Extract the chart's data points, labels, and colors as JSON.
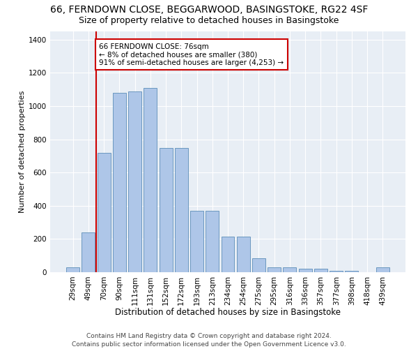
{
  "title1": "66, FERNDOWN CLOSE, BEGGARWOOD, BASINGSTOKE, RG22 4SF",
  "title2": "Size of property relative to detached houses in Basingstoke",
  "xlabel": "Distribution of detached houses by size in Basingstoke",
  "ylabel": "Number of detached properties",
  "categories": [
    "29sqm",
    "49sqm",
    "70sqm",
    "90sqm",
    "111sqm",
    "131sqm",
    "152sqm",
    "172sqm",
    "193sqm",
    "213sqm",
    "234sqm",
    "254sqm",
    "275sqm",
    "295sqm",
    "316sqm",
    "336sqm",
    "357sqm",
    "377sqm",
    "398sqm",
    "418sqm",
    "439sqm"
  ],
  "bar_heights": [
    30,
    240,
    720,
    1080,
    1090,
    1110,
    750,
    750,
    370,
    370,
    215,
    215,
    85,
    30,
    30,
    20,
    20,
    10,
    10,
    0,
    30
  ],
  "bar_color": "#aec6e8",
  "bar_edge_color": "#5b8db8",
  "vline_color": "#cc0000",
  "annotation_text": "66 FERNDOWN CLOSE: 76sqm\n← 8% of detached houses are smaller (380)\n91% of semi-detached houses are larger (4,253) →",
  "annotation_box_color": "#ffffff",
  "annotation_box_edge": "#cc0000",
  "ylim": [
    0,
    1450
  ],
  "yticks": [
    0,
    200,
    400,
    600,
    800,
    1000,
    1200,
    1400
  ],
  "bg_color": "#e8eef5",
  "footer": "Contains HM Land Registry data © Crown copyright and database right 2024.\nContains public sector information licensed under the Open Government Licence v3.0.",
  "title1_fontsize": 10,
  "title2_fontsize": 9,
  "xlabel_fontsize": 8.5,
  "ylabel_fontsize": 8,
  "tick_fontsize": 7.5,
  "footer_fontsize": 6.5,
  "ann_fontsize": 7.5
}
